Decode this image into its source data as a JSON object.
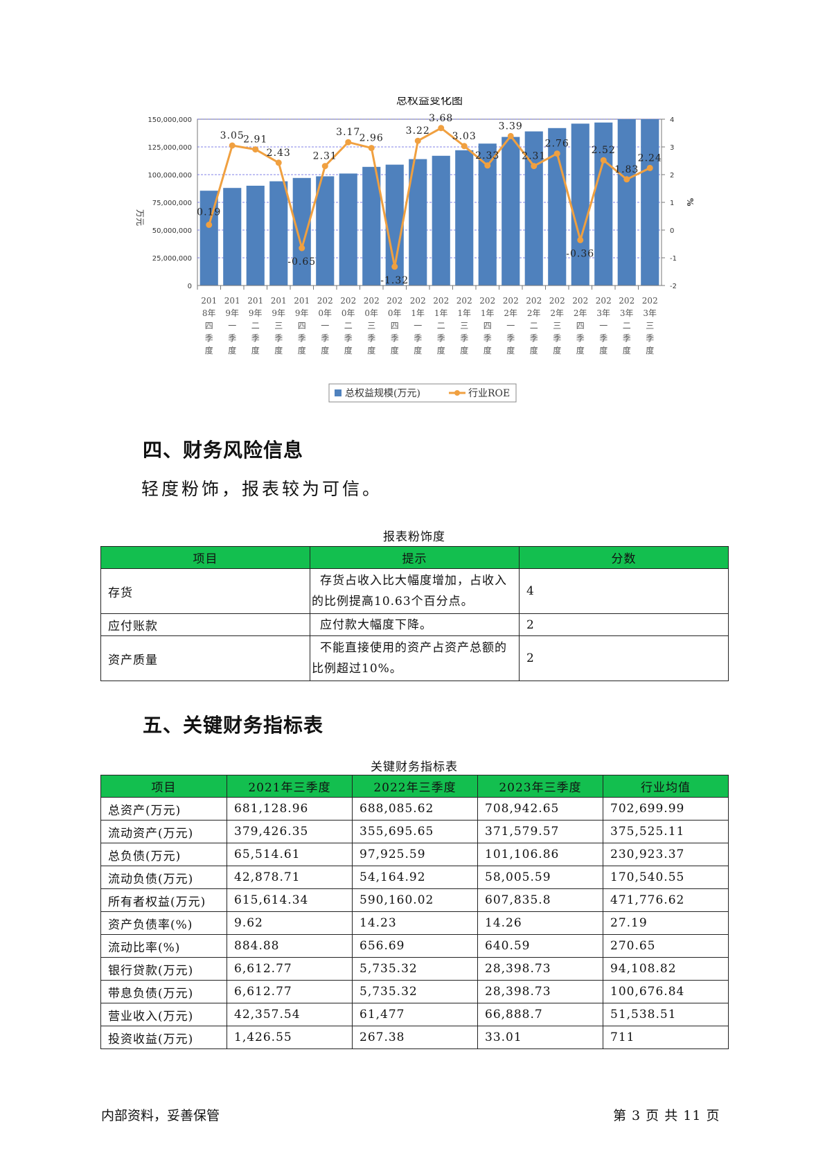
{
  "chart_data": {
    "type": "bar+line",
    "title": "总权益变化图",
    "ylabel_left": "万元",
    "ylabel_right": "%",
    "ylim_left": [
      0,
      150000000
    ],
    "yticks_left": [
      "0",
      "25,000,000",
      "50,000,000",
      "75,000,000",
      "100,000,000",
      "125,000,000",
      "150,000,000"
    ],
    "ylim_right": [
      -2,
      4
    ],
    "yticks_right": [
      "-2",
      "-1",
      "0",
      "1",
      "2",
      "3",
      "4"
    ],
    "categories": [
      "2018年四季度",
      "2019年一季度",
      "2019年二季度",
      "2019年三季度",
      "2019年四季度",
      "2020年一季度",
      "2020年二季度",
      "2020年三季度",
      "2020年四季度",
      "2021年一季度",
      "2021年二季度",
      "2021年三季度",
      "2021年四季度",
      "2022年一季度",
      "2022年二季度",
      "2022年三季度",
      "2022年四季度",
      "2023年一季度",
      "2023年二季度",
      "2023年三季度"
    ],
    "category_lines": [
      [
        "201",
        "8年",
        "四",
        "季",
        "度"
      ],
      [
        "201",
        "9年",
        "一",
        "季",
        "度"
      ],
      [
        "201",
        "9年",
        "二",
        "季",
        "度"
      ],
      [
        "201",
        "9年",
        "三",
        "季",
        "度"
      ],
      [
        "201",
        "9年",
        "四",
        "季",
        "度"
      ],
      [
        "202",
        "0年",
        "一",
        "季",
        "度"
      ],
      [
        "202",
        "0年",
        "二",
        "季",
        "度"
      ],
      [
        "202",
        "0年",
        "三",
        "季",
        "度"
      ],
      [
        "202",
        "0年",
        "四",
        "季",
        "度"
      ],
      [
        "202",
        "1年",
        "一",
        "季",
        "度"
      ],
      [
        "202",
        "1年",
        "二",
        "季",
        "度"
      ],
      [
        "202",
        "1年",
        "三",
        "季",
        "度"
      ],
      [
        "202",
        "1年",
        "四",
        "季",
        "度"
      ],
      [
        "202",
        "2年",
        "一",
        "季",
        "度"
      ],
      [
        "202",
        "2年",
        "二",
        "季",
        "度"
      ],
      [
        "202",
        "2年",
        "三",
        "季",
        "度"
      ],
      [
        "202",
        "2年",
        "四",
        "季",
        "度"
      ],
      [
        "202",
        "3年",
        "一",
        "季",
        "度"
      ],
      [
        "202",
        "3年",
        "二",
        "季",
        "度"
      ],
      [
        "202",
        "3年",
        "三",
        "季",
        "度"
      ]
    ],
    "series": [
      {
        "name": "总权益规模(万元)",
        "type": "bar",
        "axis": "left",
        "color": "#4f81bd",
        "values": [
          85500000,
          88000000,
          90000000,
          94000000,
          97000000,
          98500000,
          101000000,
          107000000,
          109000000,
          114000000,
          117000000,
          122000000,
          128000000,
          134000000,
          139000000,
          142000000,
          146000000,
          147000000,
          150000000,
          150000000
        ]
      },
      {
        "name": "行业ROE",
        "type": "line",
        "axis": "right",
        "color": "#f0a040",
        "values": [
          0.19,
          3.05,
          2.91,
          2.43,
          -0.65,
          2.31,
          3.17,
          2.96,
          -1.32,
          3.22,
          3.68,
          3.03,
          2.33,
          3.39,
          2.31,
          2.76,
          -0.36,
          2.52,
          1.83,
          2.24
        ],
        "labels": [
          "0.19",
          "3.05",
          "2.91",
          "2.43",
          "-0.65",
          "2.31",
          "3.17",
          "2.96",
          "-1.32",
          "3.22",
          "3.68",
          "3.03",
          "2.33",
          "3.39",
          "2.31",
          "2.76",
          "-0.36",
          "2.52",
          "1.83",
          "2.24"
        ]
      }
    ],
    "grid": true,
    "legend_position": "bottom"
  },
  "section4": {
    "heading": "四、财务风险信息",
    "summary": "轻度粉饰，报表较为可信。"
  },
  "risk_table": {
    "caption": "报表粉饰度",
    "headers": [
      "项目",
      "提示",
      "分数"
    ],
    "rows": [
      {
        "item": "存货",
        "hint": "存货占收入比大幅度增加，占收入的比例提高10.63个百分点。",
        "score": "4"
      },
      {
        "item": "应付账款",
        "hint": "应付款大幅度下降。",
        "score": "2"
      },
      {
        "item": "资产质量",
        "hint": "不能直接使用的资产占资产总额的比例超过10%。",
        "score": "2"
      }
    ]
  },
  "section5": {
    "heading": "五、关键财务指标表"
  },
  "key_table": {
    "caption": "关键财务指标表",
    "headers": [
      "项目",
      "2021年三季度",
      "2022年三季度",
      "2023年三季度",
      "行业均值"
    ],
    "rows": [
      [
        "总资产(万元)",
        "681,128.96",
        "688,085.62",
        "708,942.65",
        "702,699.99"
      ],
      [
        "流动资产(万元)",
        "379,426.35",
        "355,695.65",
        "371,579.57",
        "375,525.11"
      ],
      [
        "总负债(万元)",
        "65,514.61",
        "97,925.59",
        "101,106.86",
        "230,923.37"
      ],
      [
        "流动负债(万元)",
        "42,878.71",
        "54,164.92",
        "58,005.59",
        "170,540.55"
      ],
      [
        "所有者权益(万元)",
        "615,614.34",
        "590,160.02",
        "607,835.8",
        "471,776.62"
      ],
      [
        "资产负债率(%)",
        "9.62",
        "14.23",
        "14.26",
        "27.19"
      ],
      [
        "流动比率(%)",
        "884.88",
        "656.69",
        "640.59",
        "270.65"
      ],
      [
        "银行贷款(万元)",
        "6,612.77",
        "5,735.32",
        "28,398.73",
        "94,108.82"
      ],
      [
        "带息负债(万元)",
        "6,612.77",
        "5,735.32",
        "28,398.73",
        "100,676.84"
      ],
      [
        "营业收入(万元)",
        "42,357.54",
        "61,477",
        "66,888.7",
        "51,538.51"
      ],
      [
        "投资收益(万元)",
        "1,426.55",
        "267.38",
        "33.01",
        "711"
      ]
    ]
  },
  "footer": {
    "left": "内部资料，妥善保管",
    "right": "第 3 页  共 11 页"
  }
}
